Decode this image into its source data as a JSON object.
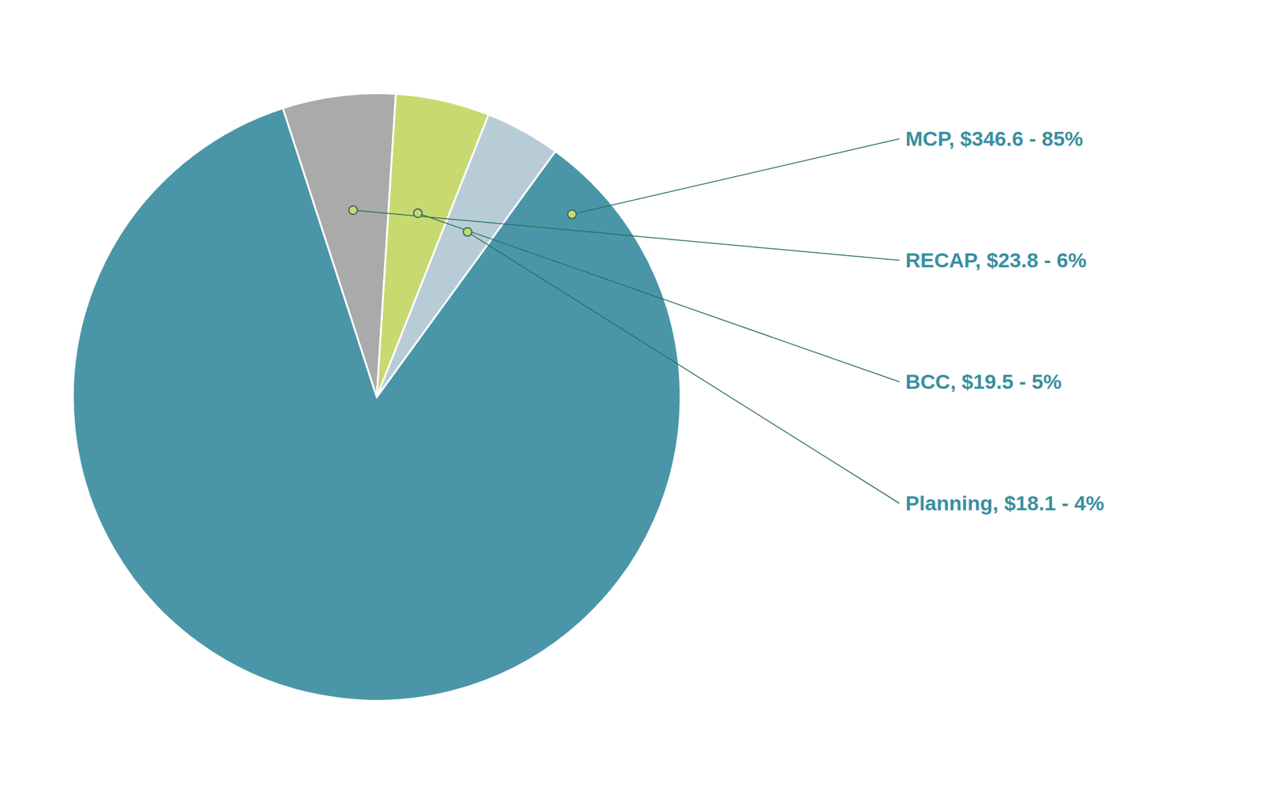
{
  "chart_data": {
    "type": "pie",
    "values": [
      85,
      6,
      5,
      4
    ],
    "value_labels": [
      "MCP, $346.6 - 85%",
      "RECAP, $23.8 - 6%",
      "BCC, $19.5 - 5%",
      "Planning, $18.1 - 4%"
    ],
    "colors": [
      "#4a96a8",
      "#aaaaaa",
      "#c8d96f",
      "#b8ccd8"
    ],
    "data_labels": true
  }
}
